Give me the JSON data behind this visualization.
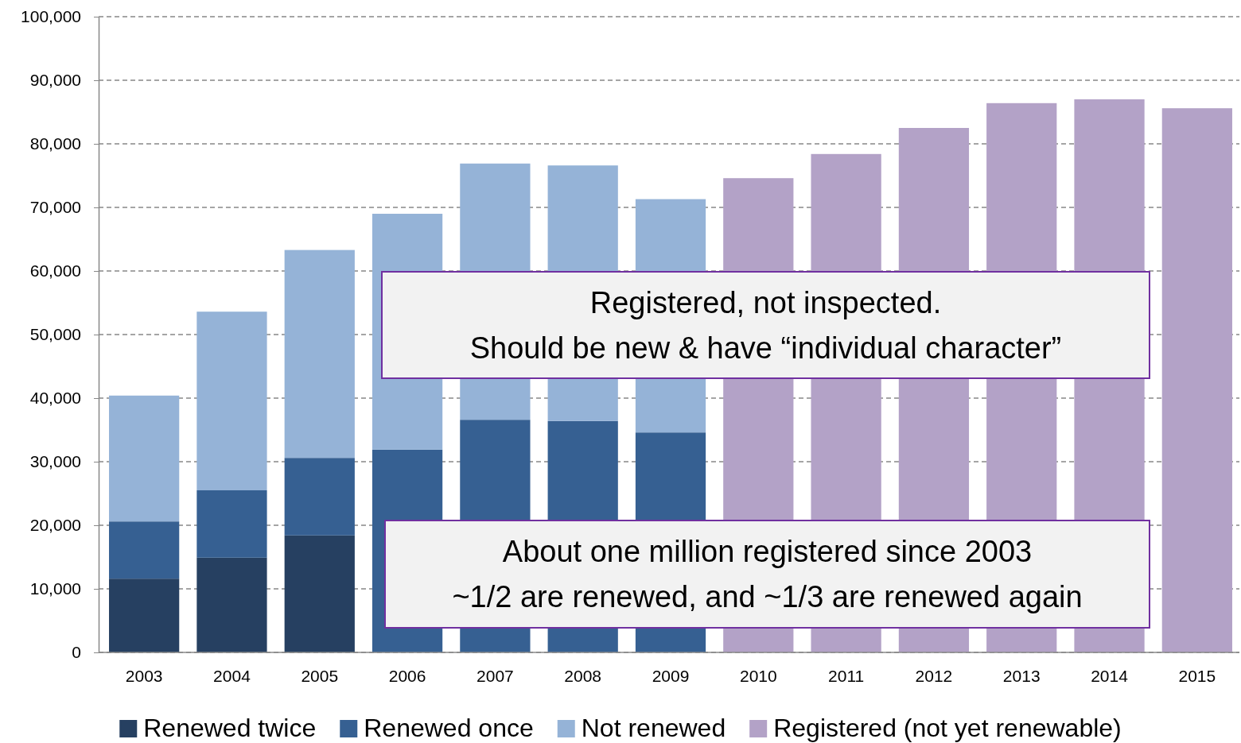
{
  "chart_data": {
    "type": "bar",
    "stacked": true,
    "categories": [
      "2003",
      "2004",
      "2005",
      "2006",
      "2007",
      "2008",
      "2009",
      "2010",
      "2011",
      "2012",
      "2013",
      "2014",
      "2015"
    ],
    "series": [
      {
        "name": "Renewed twice",
        "color": "#264061",
        "values": [
          11600,
          14900,
          18400,
          null,
          null,
          null,
          null,
          null,
          null,
          null,
          null,
          null,
          null
        ]
      },
      {
        "name": "Renewed once",
        "color": "#366092",
        "values": [
          9000,
          10600,
          12200,
          31900,
          36600,
          36400,
          34600,
          null,
          null,
          null,
          null,
          null,
          null
        ]
      },
      {
        "name": "Not renewed",
        "color": "#95b3d7",
        "values": [
          19800,
          28100,
          32700,
          37100,
          40300,
          40200,
          36700,
          null,
          null,
          null,
          null,
          null,
          null
        ]
      },
      {
        "name": "Registered (not yet renewable)",
        "color": "#b3a2c7",
        "values": [
          null,
          null,
          null,
          null,
          null,
          null,
          null,
          74600,
          78400,
          82500,
          86400,
          87000,
          85600
        ]
      }
    ],
    "ylim": [
      0,
      100000
    ],
    "yticks": [
      0,
      {
        "value": 10000,
        "label": "10,000"
      },
      {
        "value": 20000,
        "label": "20,000"
      },
      {
        "value": 30000,
        "label": "30,000"
      },
      {
        "value": 40000,
        "label": "40,000"
      },
      {
        "value": 50000,
        "label": "50,000"
      },
      {
        "value": 60000,
        "label": "60,000"
      },
      {
        "value": 70000,
        "label": "70,000"
      },
      {
        "value": 80000,
        "label": "80,000"
      },
      {
        "value": 90000,
        "label": "90,000"
      },
      {
        "value": 100000,
        "label": "100,000"
      }
    ],
    "grid": "y",
    "legend": "bottom",
    "annotations": [
      "Registered, not inspected.\nShould be new & have “individual character”",
      "About one million registered since 2003\n~1/2 are renewed, and ~1/3 are renewed again"
    ]
  }
}
